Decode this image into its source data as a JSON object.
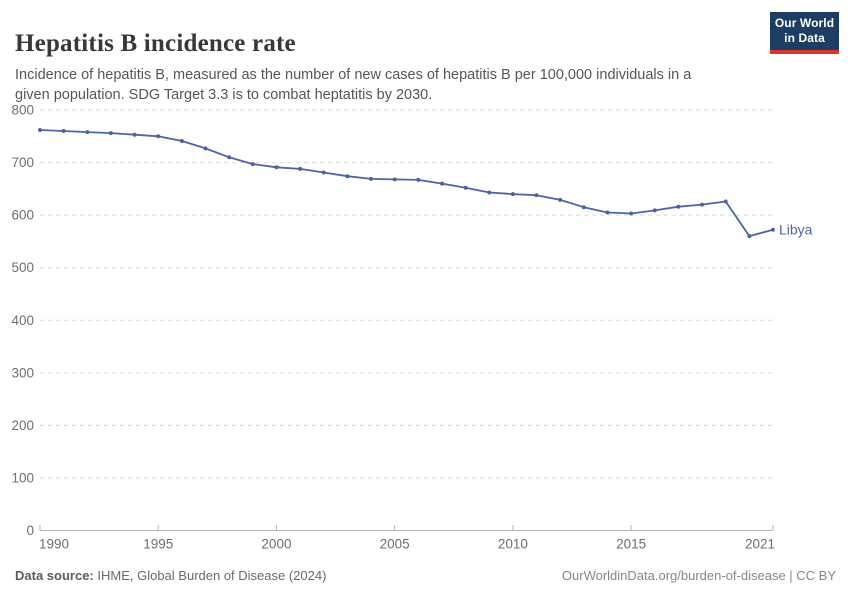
{
  "header": {
    "title": "Hepatitis B incidence rate",
    "subtitle": "Incidence of hepatitis B, measured as the number of new cases of hepatitis B per 100,000 individuals in a given population. SDG Target 3.3 is to combat heptatitis by 2030."
  },
  "logo": {
    "line1": "Our World",
    "line2": "in Data",
    "bg": "#1d3d63",
    "accent": "#d7352e"
  },
  "chart_data": {
    "type": "line",
    "title": "Hepatitis B incidence rate",
    "xlabel": "",
    "ylabel": "",
    "x": [
      1990,
      1991,
      1992,
      1993,
      1994,
      1995,
      1996,
      1997,
      1998,
      1999,
      2000,
      2001,
      2002,
      2003,
      2004,
      2005,
      2006,
      2007,
      2008,
      2009,
      2010,
      2011,
      2012,
      2013,
      2014,
      2015,
      2016,
      2017,
      2018,
      2019,
      2020,
      2021
    ],
    "series": [
      {
        "name": "Libya",
        "color": "#4a65a6",
        "values": [
          762,
          760,
          758,
          756,
          753,
          750,
          741,
          727,
          710,
          697,
          691,
          688,
          681,
          674,
          669,
          668,
          667,
          660,
          652,
          643,
          640,
          638,
          629,
          615,
          605,
          603,
          609,
          616,
          620,
          626,
          560,
          572
        ]
      }
    ],
    "ylim": [
      0,
      800
    ],
    "yticks": [
      0,
      100,
      200,
      300,
      400,
      500,
      600,
      700,
      800
    ],
    "xticks": [
      1990,
      1995,
      2000,
      2005,
      2010,
      2015,
      2021
    ],
    "grid": "horizontal-dashed",
    "legend": "end-of-line-label"
  },
  "footer": {
    "source_label": "Data source:",
    "source_value": "IHME, Global Burden of Disease (2024)",
    "credit": "OurWorldinData.org/burden-of-disease | CC BY"
  },
  "colors": {
    "grid": "#d9d9d9",
    "axis": "#b5b5b5",
    "tick_label": "#6e6e6e",
    "marker": "#4a65a6"
  }
}
